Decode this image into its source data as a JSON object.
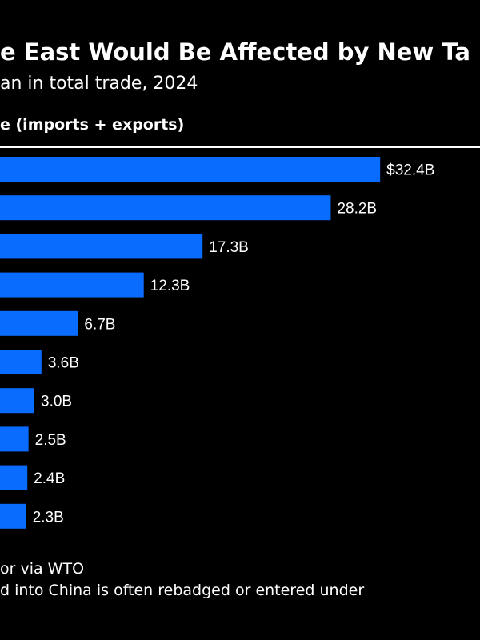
{
  "chart_data": {
    "type": "bar",
    "orientation": "horizontal",
    "title": "e East Would Be Affected by New Ta",
    "subtitle": "an in total trade, 2024",
    "ylabel": "e (imports + exports)",
    "values": [
      32.4,
      28.2,
      17.3,
      12.3,
      6.7,
      3.6,
      3.0,
      2.5,
      2.4,
      2.3
    ],
    "value_labels": [
      "$32.4B",
      "28.2B",
      "17.3B",
      "12.3B",
      "6.7B",
      "3.6B",
      "3.0B",
      "2.5B",
      "2.4B",
      "2.3B"
    ],
    "bar_color": "#0a6cff",
    "grid": false
  },
  "footnotes": {
    "line1": "or via WTO",
    "line2": "d into China is often rebadged or entered under"
  },
  "colors": {
    "background": "#000000",
    "text": "#ffffff",
    "accent": "#0a6cff"
  }
}
